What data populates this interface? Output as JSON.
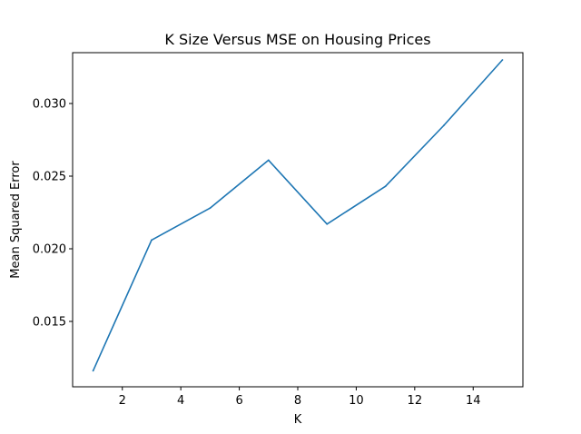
{
  "chart_data": {
    "type": "line",
    "title": "K Size Versus MSE on Housing Prices",
    "xlabel": "K",
    "ylabel": "Mean Squared Error",
    "xlim": [
      0.3,
      15.7
    ],
    "ylim": [
      0.0105,
      0.0335
    ],
    "xticks": [
      2,
      4,
      6,
      8,
      10,
      12,
      14
    ],
    "yticks": [
      0.015,
      0.02,
      0.025,
      0.03
    ],
    "ytick_labels": [
      "0.015",
      "0.020",
      "0.025",
      "0.030"
    ],
    "grid": false,
    "series": [
      {
        "color": "#1f77b4",
        "x": [
          1,
          3,
          5,
          7,
          9,
          11,
          13,
          15
        ],
        "y": [
          0.0116,
          0.0206,
          0.0228,
          0.0261,
          0.0217,
          0.0243,
          0.0285,
          0.033
        ]
      }
    ]
  }
}
